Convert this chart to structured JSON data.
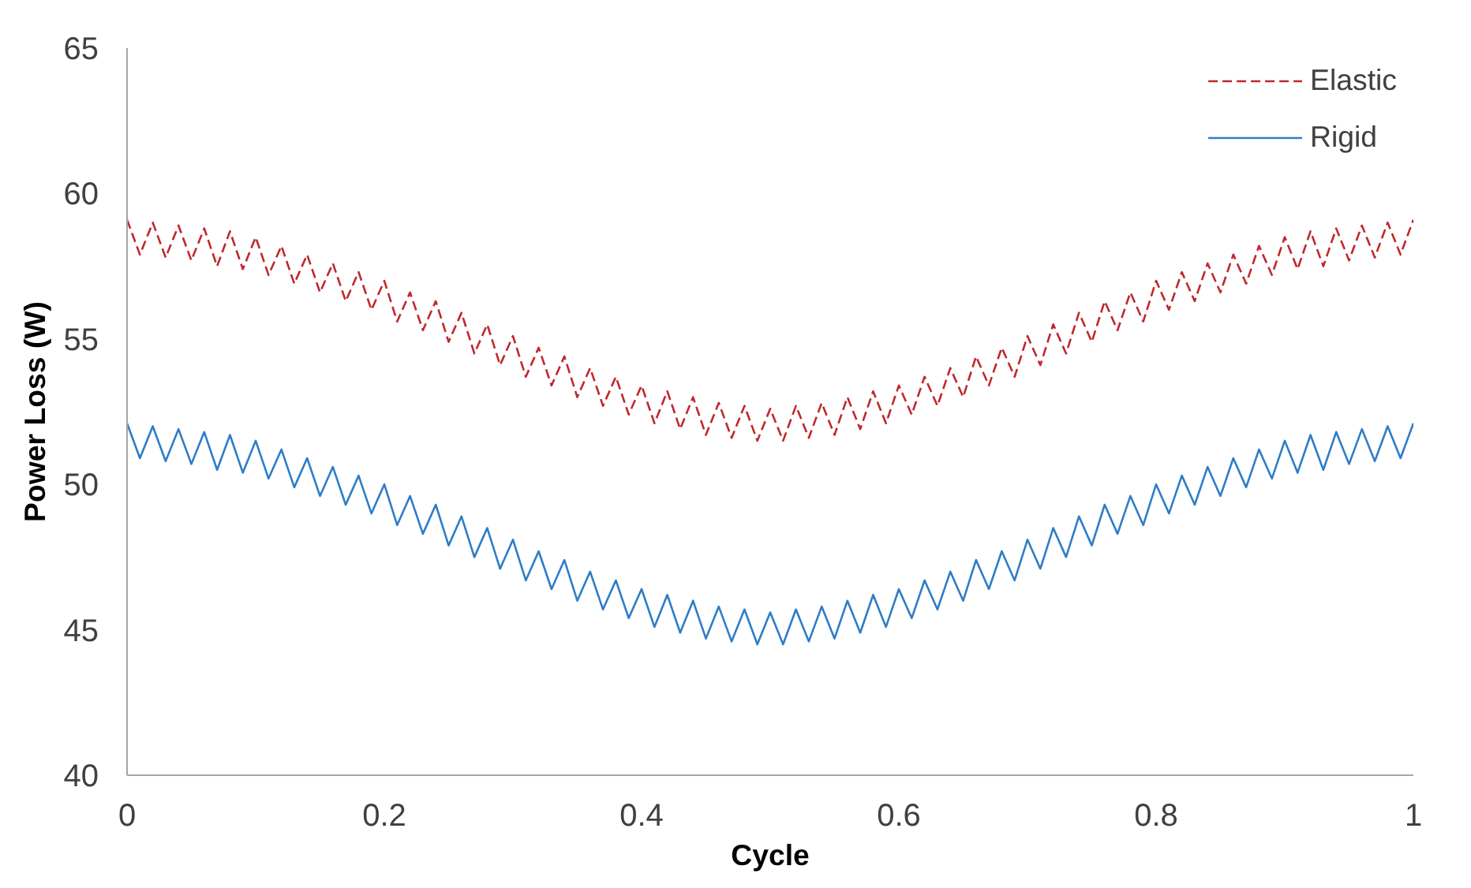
{
  "chart_data": {
    "type": "line",
    "xlabel": "Cycle",
    "ylabel": "Power Loss (W)",
    "xlim": [
      0,
      1
    ],
    "ylim": [
      40,
      65
    ],
    "xticks": [
      0,
      0.2,
      0.4,
      0.6,
      0.8,
      1
    ],
    "yticks": [
      40,
      45,
      50,
      55,
      60,
      65
    ],
    "legend": "top right",
    "x": [
      0,
      0.01,
      0.02,
      0.03,
      0.04,
      0.05,
      0.06,
      0.07,
      0.08,
      0.09,
      0.1,
      0.11,
      0.12,
      0.13,
      0.14,
      0.15,
      0.16,
      0.17,
      0.18,
      0.19,
      0.2,
      0.21,
      0.22,
      0.23,
      0.24,
      0.25,
      0.26,
      0.27,
      0.28,
      0.29,
      0.3,
      0.31,
      0.32,
      0.33,
      0.34,
      0.35,
      0.36,
      0.37,
      0.38,
      0.39,
      0.4,
      0.41,
      0.42,
      0.43,
      0.44,
      0.45,
      0.46,
      0.47,
      0.48,
      0.49,
      0.5,
      0.51,
      0.52,
      0.53,
      0.54,
      0.55,
      0.56,
      0.57,
      0.58,
      0.59,
      0.6,
      0.61,
      0.62,
      0.63,
      0.64,
      0.65,
      0.66,
      0.67,
      0.68,
      0.69,
      0.7,
      0.71,
      0.72,
      0.73,
      0.74,
      0.75,
      0.76,
      0.77,
      0.78,
      0.79,
      0.8,
      0.81,
      0.82,
      0.83,
      0.84,
      0.85,
      0.86,
      0.87,
      0.88,
      0.89,
      0.9,
      0.91,
      0.92,
      0.93,
      0.94,
      0.95,
      0.96,
      0.97,
      0.98,
      0.99,
      1
    ],
    "series": [
      {
        "name": "Elastic",
        "color": "#c0282d",
        "line_style": "dashed",
        "values": [
          59.1,
          57.9,
          59.0,
          57.8,
          58.9,
          57.7,
          58.8,
          57.5,
          58.7,
          57.4,
          58.5,
          57.2,
          58.2,
          56.9,
          57.9,
          56.6,
          57.6,
          56.3,
          57.3,
          56.0,
          57.0,
          55.6,
          56.6,
          55.3,
          56.3,
          54.9,
          55.9,
          54.5,
          55.5,
          54.1,
          55.1,
          53.7,
          54.7,
          53.4,
          54.4,
          53.0,
          54.0,
          52.7,
          53.7,
          52.4,
          53.4,
          52.1,
          53.2,
          51.9,
          53.0,
          51.7,
          52.8,
          51.6,
          52.7,
          51.5,
          52.6,
          51.5,
          52.7,
          51.6,
          52.8,
          51.7,
          53.0,
          51.9,
          53.2,
          52.1,
          53.4,
          52.4,
          53.7,
          52.7,
          54.0,
          53.0,
          54.4,
          53.4,
          54.7,
          53.7,
          55.1,
          54.1,
          55.5,
          54.5,
          55.9,
          54.9,
          56.3,
          55.3,
          56.6,
          55.6,
          57.0,
          56.0,
          57.3,
          56.3,
          57.6,
          56.6,
          57.9,
          56.9,
          58.2,
          57.2,
          58.5,
          57.4,
          58.7,
          57.5,
          58.8,
          57.7,
          58.9,
          57.8,
          59.0,
          57.9,
          59.1
        ]
      },
      {
        "name": "Rigid",
        "color": "#2e7dc6",
        "line_style": "solid",
        "values": [
          52.1,
          50.9,
          52.0,
          50.8,
          51.9,
          50.7,
          51.8,
          50.5,
          51.7,
          50.4,
          51.5,
          50.2,
          51.2,
          49.9,
          50.9,
          49.6,
          50.6,
          49.3,
          50.3,
          49.0,
          50.0,
          48.6,
          49.6,
          48.3,
          49.3,
          47.9,
          48.9,
          47.5,
          48.5,
          47.1,
          48.1,
          46.7,
          47.7,
          46.4,
          47.4,
          46.0,
          47.0,
          45.7,
          46.7,
          45.4,
          46.4,
          45.1,
          46.2,
          44.9,
          46.0,
          44.7,
          45.8,
          44.6,
          45.7,
          44.5,
          45.6,
          44.5,
          45.7,
          44.6,
          45.8,
          44.7,
          46.0,
          44.9,
          46.2,
          45.1,
          46.4,
          45.4,
          46.7,
          45.7,
          47.0,
          46.0,
          47.4,
          46.4,
          47.7,
          46.7,
          48.1,
          47.1,
          48.5,
          47.5,
          48.9,
          47.9,
          49.3,
          48.3,
          49.6,
          48.6,
          50.0,
          49.0,
          50.3,
          49.3,
          50.6,
          49.6,
          50.9,
          49.9,
          51.2,
          50.2,
          51.5,
          50.4,
          51.7,
          50.5,
          51.8,
          50.7,
          51.9,
          50.8,
          52.0,
          50.9,
          52.1
        ]
      }
    ]
  }
}
